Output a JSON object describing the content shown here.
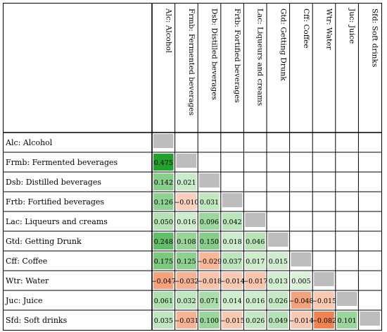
{
  "chart_data": {
    "type": "heatmap",
    "variables": [
      "Alc: Alcohol",
      "Frmb: Fermented beverages",
      "Dsb: Distilled beverages",
      "Frtb: Fortified beverages",
      "Lac: Liqueurs and creams",
      "Gtd: Getting Drunk",
      "Cff: Coffee",
      "Wtr: Water",
      "Juc: Juice",
      "Sfd: Soft drinks"
    ],
    "values": [
      [
        null
      ],
      [
        "0.475",
        null
      ],
      [
        "0.142",
        "0.021",
        null
      ],
      [
        "0.126",
        "−0.010",
        "0.031",
        null
      ],
      [
        "0.050",
        "0.016",
        "0.096",
        "0.042",
        null
      ],
      [
        "0.248",
        "0.108",
        "0.150",
        "0.018",
        "0.046",
        null
      ],
      [
        "0.175",
        "0.125",
        "−0.029",
        "0.037",
        "0.017",
        "0.015",
        null
      ],
      [
        "−0.047",
        "−0.032",
        "−0.018",
        "−0.014",
        "−0.017",
        "0.013",
        "0.005",
        null
      ],
      [
        "0.061",
        "0.032",
        "0.071",
        "0.014",
        "0.016",
        "0.026",
        "−0.048",
        "−0.015",
        null
      ],
      [
        "0.035",
        "−0.031",
        "0.100",
        "−0.015",
        "0.026",
        "0.049",
        "−0.014",
        "−0.082",
        "0.101",
        null
      ]
    ],
    "colors": {
      "positive_low": "#e8f8e5",
      "positive_high": "#22a22c",
      "negative_low": "#fde7dc",
      "negative_high": "#f08350",
      "diagonal": "#bdbdbd",
      "border": "#000000"
    }
  }
}
